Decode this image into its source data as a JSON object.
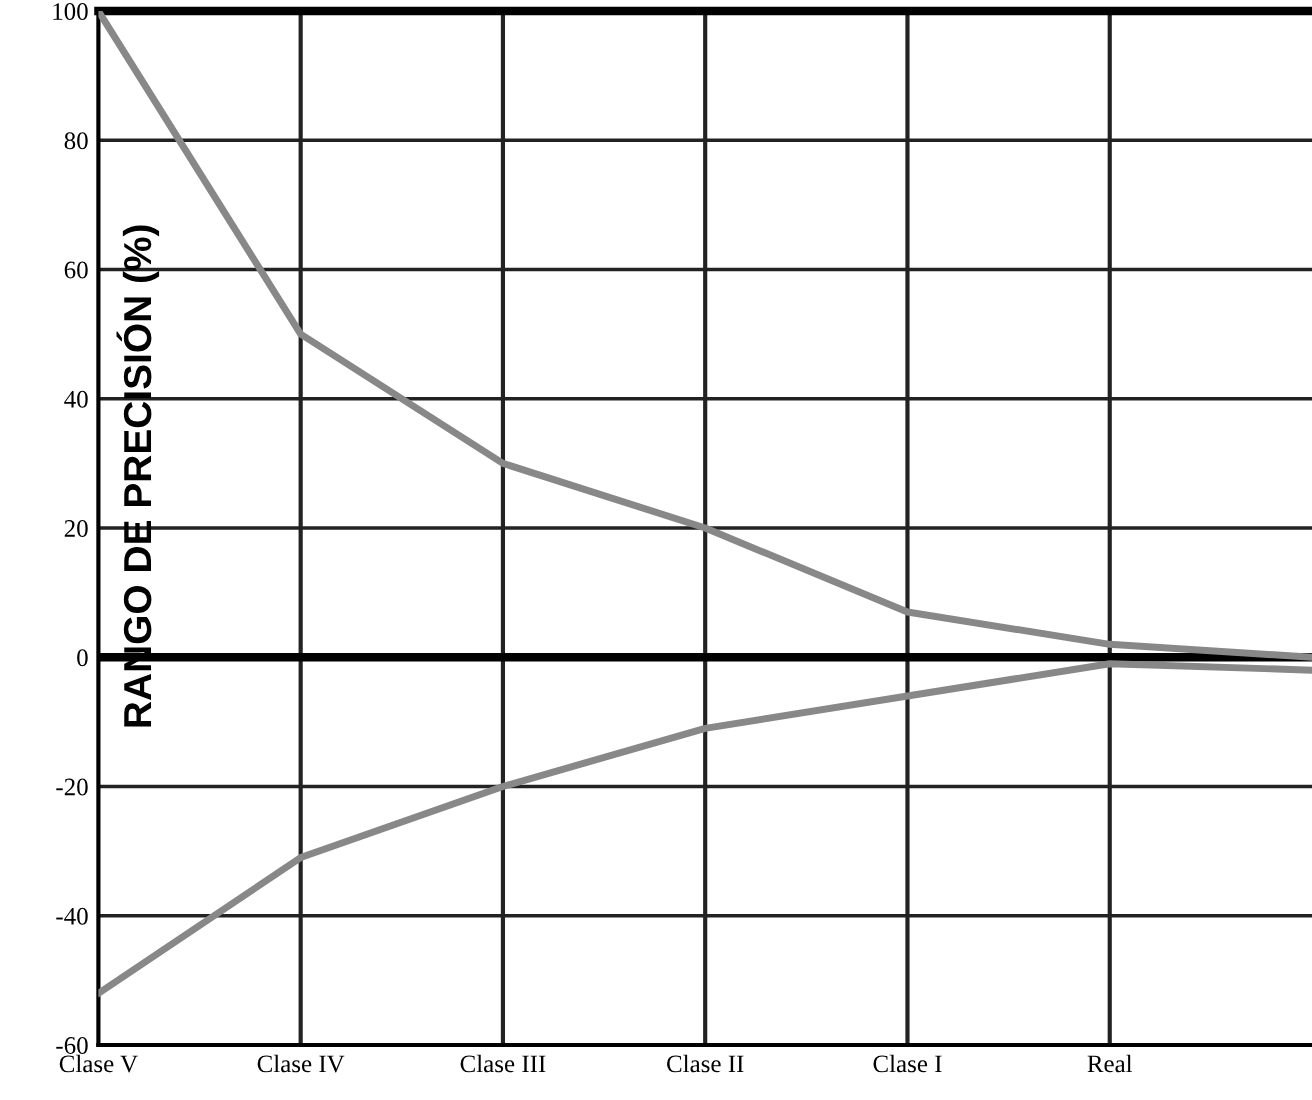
{
  "chart_data": {
    "type": "line",
    "ylabel": "RANGO DE PRECISIÓN (%)",
    "categories": [
      "Clase V",
      "Clase IV",
      "Clase III",
      "Clase II",
      "Clase I",
      "Real",
      null
    ],
    "series": [
      {
        "color": "#888888",
        "values": [
          100,
          50,
          30,
          20,
          7,
          2,
          0
        ]
      },
      {
        "color": "#888888",
        "values": [
          -52,
          -31,
          -20,
          -11,
          -6,
          -1,
          -2
        ]
      }
    ],
    "ylim": [
      -60,
      100
    ],
    "yticks": [
      -60,
      -40,
      -20,
      0,
      20,
      40,
      60,
      80,
      100
    ],
    "ref_lines": [
      {
        "axis": "y",
        "value": 0,
        "color": "#000000"
      }
    ],
    "grid": true,
    "marker": "none",
    "line_style": "solid"
  }
}
